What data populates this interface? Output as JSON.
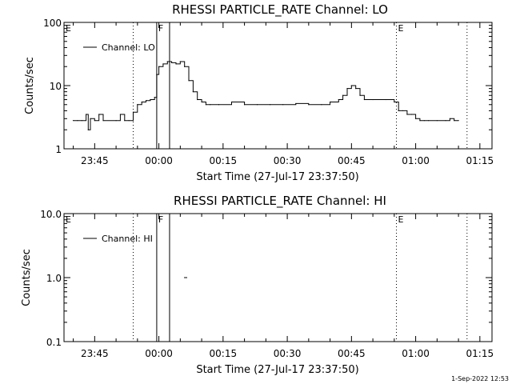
{
  "footer": {
    "timestamp": "1-Sep-2022 12:53"
  },
  "chart_data": [
    {
      "type": "line",
      "title": "RHESSI PARTICLE_RATE Channel: LO",
      "xlabel": "Start Time (27-Jul-17 23:37:50)",
      "ylabel": "Counts/sec",
      "yscale": "log",
      "ylim": [
        1,
        100
      ],
      "xlim_minutes_from_start": [
        0,
        100
      ],
      "xticks": [
        "23:45",
        "00:00",
        "00:15",
        "00:30",
        "00:45",
        "01:00",
        "01:15"
      ],
      "yticks": [
        "1",
        "10",
        "100"
      ],
      "legend": {
        "label": "Channel: LO",
        "position": "top-left"
      },
      "markers": [
        {
          "label": "E",
          "time": "23:37:50",
          "style": "dotted"
        },
        {
          "label": "",
          "time": "23:54:00",
          "style": "dotted"
        },
        {
          "label": "F",
          "time": "23:59:30",
          "style": "solid"
        },
        {
          "label": "",
          "time": "00:02:30",
          "style": "solid"
        },
        {
          "label": "E",
          "time": "00:55:30",
          "style": "dotted"
        },
        {
          "label": "",
          "time": "01:12:00",
          "style": "dotted"
        }
      ],
      "series": [
        {
          "name": "Channel: LO",
          "x": [
            "23:40:00",
            "23:41:00",
            "23:42:00",
            "23:43:00",
            "23:43:30",
            "23:44:00",
            "23:45:00",
            "23:46:00",
            "23:47:00",
            "23:50:00",
            "23:51:00",
            "23:52:00",
            "23:53:00",
            "23:54:00",
            "23:55:00",
            "23:56:00",
            "23:57:00",
            "23:58:00",
            "23:59:00",
            "23:59:30",
            "00:00:00",
            "00:01:00",
            "00:02:00",
            "00:03:00",
            "00:04:00",
            "00:05:00",
            "00:06:00",
            "00:07:00",
            "00:08:00",
            "00:09:00",
            "00:10:00",
            "00:11:00",
            "00:12:00",
            "00:14:00",
            "00:17:00",
            "00:20:00",
            "00:23:00",
            "00:26:00",
            "00:29:00",
            "00:32:00",
            "00:35:00",
            "00:38:00",
            "00:40:00",
            "00:42:00",
            "00:43:00",
            "00:44:00",
            "00:45:00",
            "00:46:00",
            "00:47:00",
            "00:48:00",
            "00:50:00",
            "00:53:00",
            "00:55:00",
            "00:56:00",
            "00:57:00",
            "00:58:00",
            "00:59:00",
            "01:00:00",
            "01:01:00",
            "01:02:00",
            "01:03:00",
            "01:05:00",
            "01:07:00",
            "01:08:00",
            "01:09:00",
            "01:10:00"
          ],
          "values": [
            2.8,
            2.8,
            2.8,
            3.5,
            2.0,
            3.0,
            2.8,
            3.5,
            2.8,
            2.8,
            3.5,
            2.8,
            2.8,
            3.8,
            5.0,
            5.5,
            5.8,
            6.0,
            6.5,
            15,
            20,
            22,
            24,
            23,
            22,
            24,
            20,
            12,
            8,
            6,
            5.5,
            5,
            5,
            5,
            5.5,
            5,
            5,
            5,
            5,
            5.2,
            5,
            5,
            5.5,
            6,
            7,
            9,
            10,
            9,
            7,
            6,
            6,
            6,
            5.5,
            4,
            4,
            3.5,
            3.5,
            3,
            2.8,
            2.8,
            2.8,
            2.8,
            2.8,
            3.0,
            2.8,
            2.8
          ]
        }
      ]
    },
    {
      "type": "line",
      "title": "RHESSI PARTICLE_RATE Channel: HI",
      "xlabel": "Start Time (27-Jul-17 23:37:50)",
      "ylabel": "Counts/sec",
      "yscale": "log",
      "ylim": [
        0.1,
        10.0
      ],
      "xlim_minutes_from_start": [
        0,
        100
      ],
      "xticks": [
        "23:45",
        "00:00",
        "00:15",
        "00:30",
        "00:45",
        "01:00",
        "01:15"
      ],
      "yticks": [
        "0.1",
        "1.0",
        "10.0"
      ],
      "legend": {
        "label": "Channel: HI",
        "position": "top-left"
      },
      "markers": [
        {
          "label": "E",
          "time": "23:37:50",
          "style": "dotted"
        },
        {
          "label": "",
          "time": "23:54:00",
          "style": "dotted"
        },
        {
          "label": "F",
          "time": "23:59:30",
          "style": "solid"
        },
        {
          "label": "",
          "time": "00:02:30",
          "style": "solid"
        },
        {
          "label": "E",
          "time": "00:55:30",
          "style": "dotted"
        },
        {
          "label": "",
          "time": "01:12:00",
          "style": "dotted"
        }
      ],
      "series": [
        {
          "name": "Channel: HI",
          "x": [
            "00:06:00",
            "00:06:30"
          ],
          "values": [
            1.0,
            1.0
          ]
        }
      ]
    }
  ]
}
